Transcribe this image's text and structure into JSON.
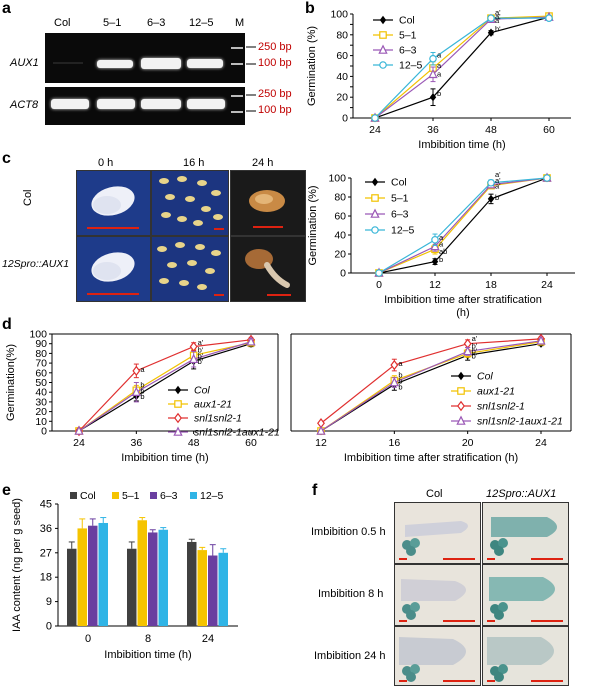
{
  "panel_letters": {
    "a": "a",
    "b": "b",
    "c": "c",
    "d": "d",
    "e": "e",
    "f": "f"
  },
  "panel_a": {
    "lanes": [
      "Col",
      "5–1",
      "6–3",
      "12–5",
      "M"
    ],
    "rows": [
      "AUX1",
      "ACT8"
    ],
    "markers": [
      "250 bp",
      "100 bp"
    ],
    "marker_color": "#c00000"
  },
  "panel_c": {
    "times": [
      "0 h",
      "16 h",
      "24 h"
    ],
    "rows": [
      "Col",
      "12Spro::AUX1"
    ]
  },
  "panel_f": {
    "columns": [
      "Col",
      "12Spro::AUX1"
    ],
    "rows": [
      "Imbibition 0.5 h",
      "Imbibition 8 h",
      "Imbibition 24 h"
    ]
  },
  "chart_data": [
    {
      "id": "b",
      "type": "line",
      "x": [
        24,
        36,
        48,
        60
      ],
      "xlabel": "Imbibition time (h)",
      "ylabel": "Germination (%)",
      "ylim": [
        0,
        100
      ],
      "yticks": [
        0,
        10,
        20,
        30,
        40,
        50,
        60,
        70,
        80,
        90,
        100
      ],
      "legend": "top-left",
      "series": [
        {
          "name": "Col",
          "color": "#000000",
          "marker": "diamond",
          "values": [
            0,
            20,
            82,
            97
          ],
          "err": [
            0,
            8,
            2,
            0
          ]
        },
        {
          "name": "5–1",
          "color": "#f2c200",
          "marker": "square",
          "values": [
            0,
            48,
            96,
            98
          ],
          "err": [
            0,
            6,
            2,
            0
          ]
        },
        {
          "name": "6–3",
          "color": "#9b59b6",
          "marker": "triangle",
          "values": [
            0,
            42,
            95,
            97
          ],
          "err": [
            0,
            7,
            2,
            0
          ]
        },
        {
          "name": "12–5",
          "color": "#39b6d8",
          "marker": "circle",
          "values": [
            0,
            57,
            96,
            96
          ],
          "err": [
            0,
            6,
            2,
            0
          ]
        }
      ],
      "annotations": [
        {
          "x": 36,
          "y": 61,
          "text": "a"
        },
        {
          "x": 36,
          "y": 51,
          "text": "a"
        },
        {
          "x": 36,
          "y": 43,
          "text": "a"
        },
        {
          "x": 36,
          "y": 24,
          "text": "b"
        },
        {
          "x": 48,
          "y": 102,
          "text": "a'"
        },
        {
          "x": 48,
          "y": 98,
          "text": "a'"
        },
        {
          "x": 48,
          "y": 94,
          "text": "a'"
        },
        {
          "x": 48,
          "y": 86,
          "text": "b'"
        }
      ]
    },
    {
      "id": "c",
      "type": "line",
      "x": [
        0,
        12,
        18,
        24
      ],
      "xlabel": "Imbibition time after stratification",
      "xlabel2": "(h)",
      "ylabel": "Germination (%)",
      "ylim": [
        0,
        100
      ],
      "yticks": [
        0,
        20,
        40,
        60,
        80,
        100
      ],
      "legend": "top-left",
      "series": [
        {
          "name": "Col",
          "color": "#000000",
          "marker": "diamond",
          "values": [
            0,
            12,
            78,
            100
          ],
          "err": [
            0,
            3,
            5,
            0
          ]
        },
        {
          "name": "5–1",
          "color": "#f2c200",
          "marker": "square",
          "values": [
            0,
            25,
            92,
            100
          ],
          "err": [
            0,
            5,
            3,
            0
          ]
        },
        {
          "name": "6–3",
          "color": "#9b59b6",
          "marker": "triangle",
          "values": [
            0,
            28,
            93,
            100
          ],
          "err": [
            0,
            5,
            3,
            0
          ]
        },
        {
          "name": "12–5",
          "color": "#39b6d8",
          "marker": "circle",
          "values": [
            0,
            35,
            95,
            100
          ],
          "err": [
            0,
            6,
            3,
            0
          ]
        }
      ],
      "annotations": [
        {
          "x": 12,
          "y": 38,
          "text": "a"
        },
        {
          "x": 12,
          "y": 31,
          "text": "a"
        },
        {
          "x": 12,
          "y": 23,
          "text": "ab"
        },
        {
          "x": 12,
          "y": 15,
          "text": "b"
        },
        {
          "x": 18,
          "y": 104,
          "text": "a'"
        },
        {
          "x": 18,
          "y": 98,
          "text": "a'"
        },
        {
          "x": 18,
          "y": 92,
          "text": "a'"
        },
        {
          "x": 18,
          "y": 80,
          "text": "b'"
        }
      ]
    },
    {
      "id": "d1",
      "type": "line",
      "x": [
        24,
        36,
        48,
        60
      ],
      "xlabel": "Imbibition time (h)",
      "ylabel": "Germination(%)",
      "ylim": [
        0,
        100
      ],
      "yticks": [
        0,
        10,
        20,
        30,
        40,
        50,
        60,
        70,
        80,
        90,
        100
      ],
      "legend": "bottom-right",
      "series": [
        {
          "name": "Col",
          "color": "#000000",
          "marker": "diamond",
          "values": [
            0,
            36,
            72,
            90
          ],
          "err": [
            0,
            5,
            8,
            3
          ]
        },
        {
          "name": "aux1-21",
          "color": "#f2c200",
          "marker": "square",
          "values": [
            0,
            42,
            78,
            91
          ],
          "err": [
            0,
            5,
            6,
            3
          ]
        },
        {
          "name": "snl1snl2-1",
          "color": "#e03030",
          "marker": "diamond-open",
          "values": [
            0,
            62,
            87,
            94
          ],
          "err": [
            0,
            7,
            4,
            2
          ]
        },
        {
          "name": "snl1snl2-1aux1-21",
          "color": "#9b59b6",
          "marker": "triangle",
          "values": [
            0,
            40,
            74,
            92
          ],
          "err": [
            0,
            10,
            8,
            3
          ]
        }
      ],
      "annotations": [
        {
          "x": 36,
          "y": 64,
          "text": "a"
        },
        {
          "x": 36,
          "y": 48,
          "text": "b"
        },
        {
          "x": 36,
          "y": 42,
          "text": "b"
        },
        {
          "x": 36,
          "y": 36,
          "text": "b"
        },
        {
          "x": 48,
          "y": 92,
          "text": "a'"
        },
        {
          "x": 48,
          "y": 84,
          "text": "b'"
        },
        {
          "x": 48,
          "y": 78,
          "text": "b'"
        },
        {
          "x": 48,
          "y": 72,
          "text": "b'"
        }
      ]
    },
    {
      "id": "d2",
      "type": "line",
      "x": [
        12,
        16,
        20,
        24
      ],
      "xlabel": "Imbibition time after stratification (h)",
      "ylabel": "",
      "ylim": [
        0,
        100
      ],
      "legend": "bottom-right",
      "series": [
        {
          "name": "Col",
          "color": "#000000",
          "marker": "diamond",
          "values": [
            0,
            48,
            78,
            90
          ],
          "err": [
            0,
            6,
            5,
            2
          ]
        },
        {
          "name": "aux1-21",
          "color": "#f2c200",
          "marker": "square",
          "values": [
            0,
            52,
            80,
            92
          ],
          "err": [
            0,
            5,
            4,
            2
          ]
        },
        {
          "name": "snl1snl2-1",
          "color": "#e03030",
          "marker": "diamond-open",
          "values": [
            8,
            68,
            90,
            95
          ],
          "err": [
            0,
            6,
            4,
            2
          ]
        },
        {
          "name": "snl1snl2-1aux1-21",
          "color": "#9b59b6",
          "marker": "triangle",
          "values": [
            0,
            50,
            82,
            93
          ],
          "err": [
            0,
            5,
            4,
            2
          ]
        }
      ],
      "annotations": [
        {
          "x": 16,
          "y": 70,
          "text": "a"
        },
        {
          "x": 16,
          "y": 58,
          "text": "b"
        },
        {
          "x": 16,
          "y": 52,
          "text": "b"
        },
        {
          "x": 16,
          "y": 46,
          "text": "b"
        },
        {
          "x": 20,
          "y": 96,
          "text": "a'"
        },
        {
          "x": 20,
          "y": 88,
          "text": "b'"
        },
        {
          "x": 20,
          "y": 83,
          "text": "b'"
        },
        {
          "x": 20,
          "y": 78,
          "text": "b'"
        }
      ]
    },
    {
      "id": "e",
      "type": "bar",
      "categories": [
        "0",
        "8",
        "24"
      ],
      "xlabel": "Imbibition time (h)",
      "ylabel": "IAA content (ng per g seed)",
      "ylim": [
        0,
        45
      ],
      "yticks": [
        0,
        9,
        18,
        27,
        36,
        45
      ],
      "legend": "top",
      "series": [
        {
          "name": "Col",
          "color": "#404040",
          "values": [
            28.5,
            28.5,
            31
          ],
          "err": [
            2.5,
            2.5,
            1
          ]
        },
        {
          "name": "5–1",
          "color": "#f5c400",
          "values": [
            36,
            39,
            28
          ],
          "err": [
            3.5,
            1,
            1
          ]
        },
        {
          "name": "6–3",
          "color": "#6a3fa0",
          "values": [
            37,
            34.5,
            26
          ],
          "err": [
            2.5,
            1,
            4
          ]
        },
        {
          "name": "12–5",
          "color": "#2fb4e6",
          "values": [
            38,
            35.5,
            27
          ],
          "err": [
            2,
            0.8,
            1.5
          ]
        }
      ]
    }
  ]
}
